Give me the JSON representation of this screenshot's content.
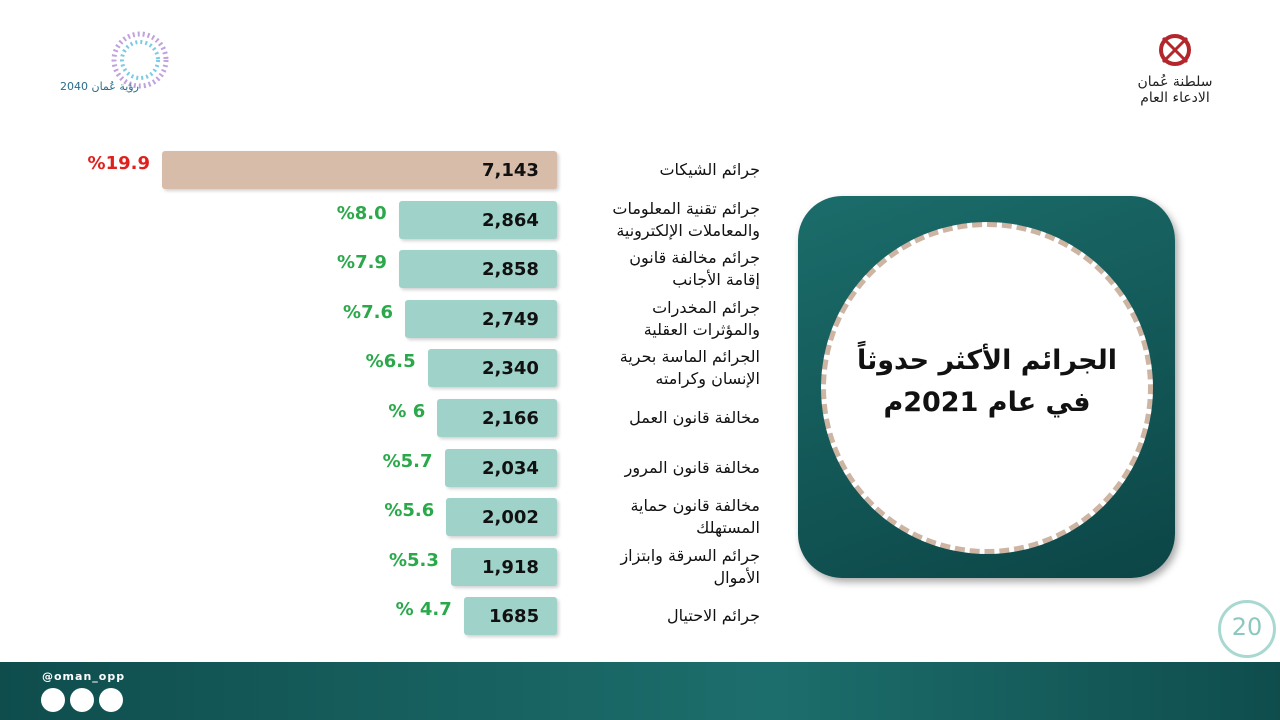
{
  "chart_data": {
    "type": "bar",
    "title": "الجرائم الأكثر حدوثاً\nفي عام 2021م",
    "categories": [
      "جرائم الشيكات",
      "جرائم تقنية المعلومات\nوالمعاملات الإلكترونية",
      "جرائم مخالفة قانون\nإقامة الأجانب",
      "جرائم المخدرات\nوالمؤثرات العقلية",
      "الجرائم الماسة بحرية\nالإنسان وكرامته",
      "مخالفة قانون العمل",
      "مخالفة قانون المرور",
      "مخالفة قانون حماية\nالمستهلك",
      "جرائم السرقة وابتزاز\nالأموال",
      "جرائم الاحتيال"
    ],
    "values": [
      7143,
      2864,
      2858,
      2749,
      2340,
      2166,
      2034,
      2002,
      1918,
      1685
    ],
    "value_labels": [
      "7,143",
      "2,864",
      "2,858",
      "2,749",
      "2,340",
      "2,166",
      "2,034",
      "2,002",
      "1,918",
      "1685"
    ],
    "percent_labels": [
      "%19.9",
      "%8.0",
      "%7.9",
      "%7.6",
      "%6.5",
      "% 6",
      "%5.7",
      "%5.6",
      "%5.3",
      "% 4.7"
    ],
    "colors": [
      "#d8bcaa",
      "#9fd3ca",
      "#9fd3ca",
      "#9fd3ca",
      "#9fd3ca",
      "#9fd3ca",
      "#9fd3ca",
      "#9fd3ca",
      "#9fd3ca",
      "#9fd3ca"
    ],
    "percent_colors": [
      "#e0201c",
      "#2aa84a",
      "#2aa84a",
      "#2aa84a",
      "#2aa84a",
      "#2aa84a",
      "#2aa84a",
      "#2aa84a",
      "#2aa84a",
      "#2aa84a"
    ]
  },
  "header": {
    "org_name": "سلطنة عُمان",
    "org_unit": "الادعاء العام",
    "vision": "رؤية عُمان 2040"
  },
  "footer": {
    "handle": "@oman_opp",
    "page_number": "20"
  }
}
